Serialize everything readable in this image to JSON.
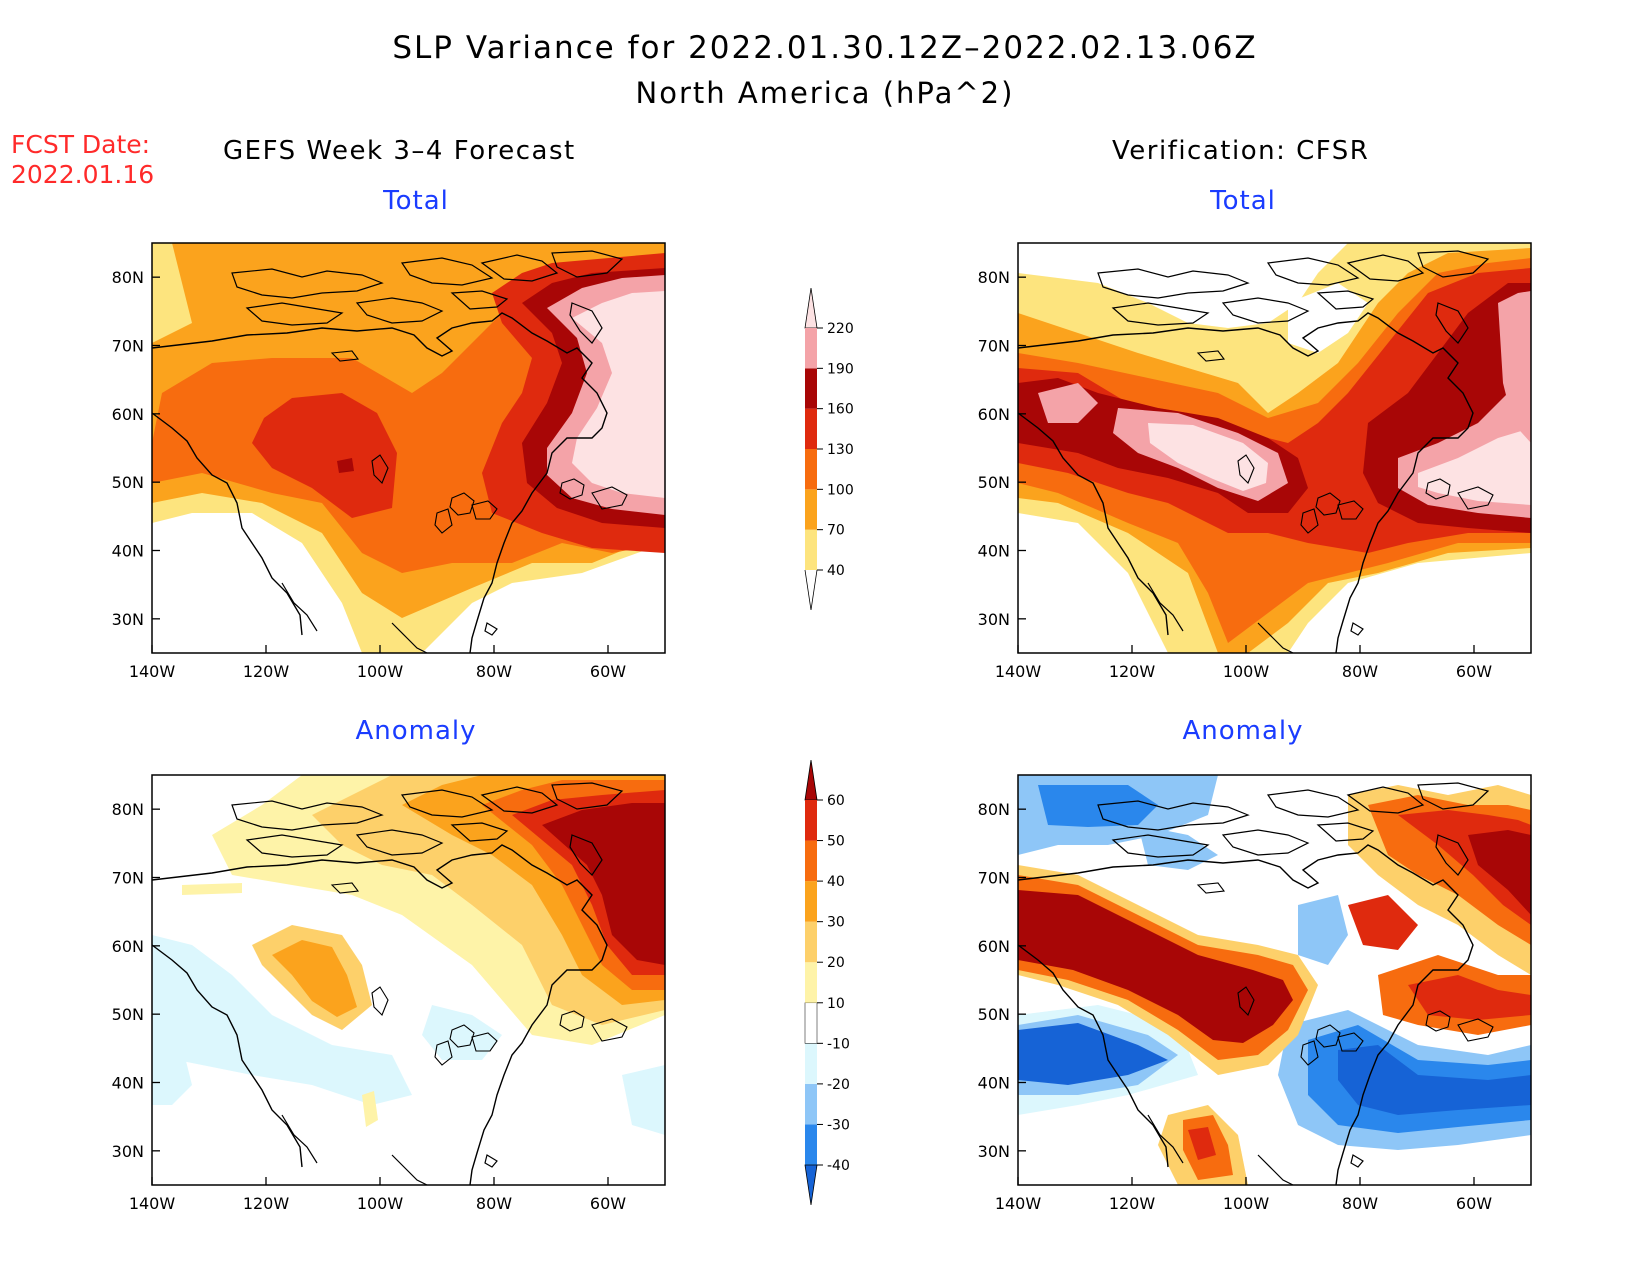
{
  "title": {
    "line1": "SLP Variance for 2022.01.30.12Z–2022.02.13.06Z",
    "line2": "North America (hPa^2)"
  },
  "fcst": {
    "label": "FCST Date:",
    "date": "2022.01.16"
  },
  "columns": {
    "left": "GEFS Week 3–4 Forecast",
    "right": "Verification: CFSR"
  },
  "panels": {
    "total_label": "Total",
    "anomaly_label": "Anomaly"
  },
  "axes": {
    "lon_labels": [
      "140W",
      "120W",
      "100W",
      "80W",
      "60W"
    ],
    "lon_values": [
      -140,
      -120,
      -100,
      -80,
      -60
    ],
    "lat_labels": [
      "80N",
      "70N",
      "60N",
      "50N",
      "40N",
      "30N"
    ],
    "lat_values": [
      80,
      70,
      60,
      50,
      40,
      30
    ],
    "lon_range": [
      -140,
      -50
    ],
    "lat_range": [
      25,
      85
    ]
  },
  "colorbars": {
    "total": {
      "levels": [
        "40",
        "70",
        "100",
        "130",
        "160",
        "190",
        "220"
      ],
      "colors": [
        "#fde47e",
        "#fba31d",
        "#f76c0f",
        "#df2a0e",
        "#a80606",
        "#f4a3a8",
        "#fde2e3"
      ]
    },
    "anomaly": {
      "levels": [
        "-40",
        "-30",
        "-20",
        "-10",
        "10",
        "20",
        "30",
        "40",
        "50",
        "60"
      ],
      "colors": [
        "#1663d6",
        "#2a87ec",
        "#8ec6f7",
        "#dcf7fd",
        "#ffffff",
        "#fef3a8",
        "#fdd06a",
        "#fba31d",
        "#f76c0f",
        "#df2a0e",
        "#a80606"
      ]
    }
  },
  "colors": {
    "fcst_red": "#ff2a2a",
    "panel_title_blue": "#1a3cff"
  }
}
